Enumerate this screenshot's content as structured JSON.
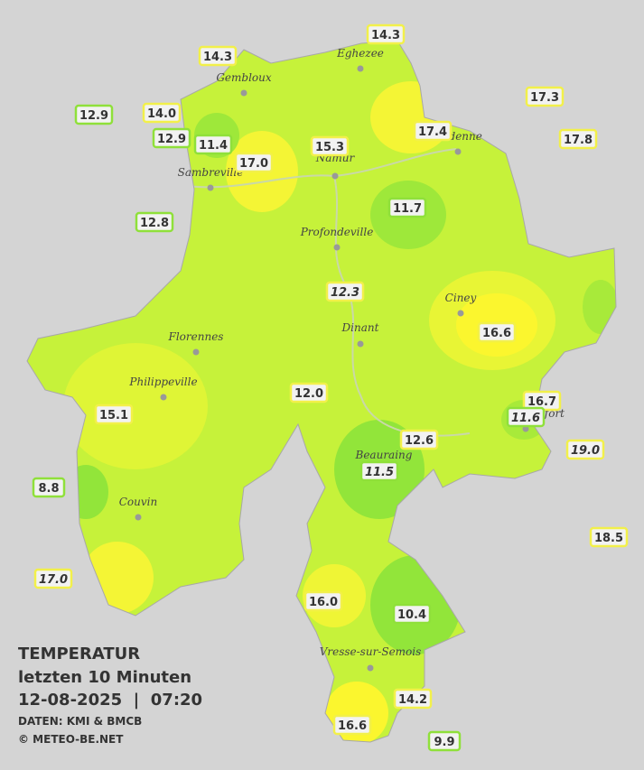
{
  "map": {
    "title": "TEMPERATUR",
    "subtitle": "letzten 10 Minuten",
    "timestamp": "12-08-2025  |  07:20",
    "source": "DATEN: KMI & BMCB",
    "copyright": "© METEO-BE.NET",
    "towns": [
      "Eghezee",
      "Gembloux",
      "Andenne",
      "Namur",
      "Sambreville",
      "Profondeville",
      "Ciney",
      "Dinant",
      "Florennes",
      "Philippeville",
      "Rochefort",
      "Beauraing",
      "Couvin",
      "Vresse-sur-Semois"
    ],
    "stations": [
      {
        "label": "14.3",
        "color": "#f2f04a"
      },
      {
        "label": "14.3",
        "color": "#f2f04a"
      },
      {
        "label": "12.9",
        "color": "#8fe03a"
      },
      {
        "label": "14.0",
        "color": "#f2f04a"
      },
      {
        "label": "12.9",
        "color": "#8fe03a"
      },
      {
        "label": "11.4",
        "color": "#8fe03a"
      },
      {
        "label": "17.0",
        "color": "#f2f04a"
      },
      {
        "label": "15.3",
        "color": "#f2f04a"
      },
      {
        "label": "17.4",
        "color": "#f2f04a"
      },
      {
        "label": "17.3",
        "color": "#f2f04a"
      },
      {
        "label": "17.8",
        "color": "#f2f04a"
      },
      {
        "label": "12.8",
        "color": "#8fe03a"
      },
      {
        "label": "11.7",
        "color": "#8fe03a"
      },
      {
        "label": "12.3",
        "color": "#f2f04a",
        "italic": true
      },
      {
        "label": "16.6",
        "color": "#f2f04a"
      },
      {
        "label": "12.0",
        "color": "#f2f04a"
      },
      {
        "label": "15.1",
        "color": "#f2f04a"
      },
      {
        "label": "16.7",
        "color": "#f2f04a"
      },
      {
        "label": "11.6",
        "color": "#8fe03a",
        "italic": true
      },
      {
        "label": "19.0",
        "color": "#f2f04a",
        "italic": true
      },
      {
        "label": "12.6",
        "color": "#f2f04a"
      },
      {
        "label": "11.5",
        "color": "#8fe03a",
        "italic": true
      },
      {
        "label": "8.8",
        "color": "#8fe03a"
      },
      {
        "label": "18.5",
        "color": "#f2f04a"
      },
      {
        "label": "17.0",
        "color": "#f2f04a",
        "italic": true
      },
      {
        "label": "16.0",
        "color": "#f2f04a"
      },
      {
        "label": "10.4",
        "color": "#8fe03a"
      },
      {
        "label": "14.2",
        "color": "#f2f04a"
      },
      {
        "label": "16.6",
        "color": "#f2f04a"
      },
      {
        "label": "9.9",
        "color": "#8fe03a"
      }
    ]
  }
}
